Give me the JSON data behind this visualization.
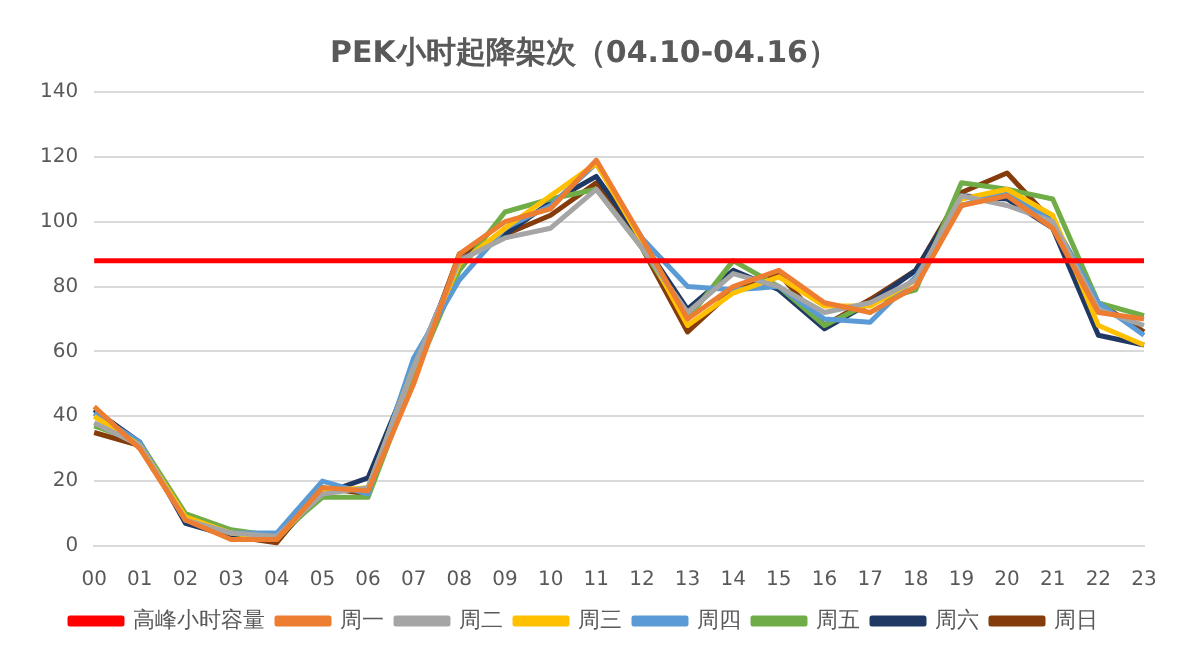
{
  "chart_data": {
    "type": "line",
    "title": "PEK小时起降架次（04.10-04.16）",
    "categories": [
      "00",
      "01",
      "02",
      "03",
      "04",
      "05",
      "06",
      "07",
      "08",
      "09",
      "10",
      "11",
      "12",
      "13",
      "14",
      "15",
      "16",
      "17",
      "18",
      "19",
      "20",
      "21",
      "22",
      "23"
    ],
    "series": [
      {
        "name": "高峰小时容量",
        "color": "#ff0000",
        "values": [
          88,
          88,
          88,
          88,
          88,
          88,
          88,
          88,
          88,
          88,
          88,
          88,
          88,
          88,
          88,
          88,
          88,
          88,
          88,
          88,
          88,
          88,
          88,
          88
        ]
      },
      {
        "name": "周一",
        "color": "#ed7d31",
        "values": [
          43,
          30,
          8,
          2,
          2,
          18,
          17,
          50,
          90,
          100,
          104,
          119,
          95,
          70,
          80,
          85,
          75,
          72,
          80,
          105,
          108,
          98,
          72,
          70
        ]
      },
      {
        "name": "周二",
        "color": "#a5a5a5",
        "values": [
          38,
          31,
          8,
          4,
          3,
          16,
          18,
          55,
          88,
          95,
          98,
          110,
          92,
          72,
          84,
          80,
          72,
          75,
          82,
          108,
          105,
          100,
          73,
          68
        ]
      },
      {
        "name": "周三",
        "color": "#ffc000",
        "values": [
          40,
          31,
          9,
          4,
          2,
          17,
          18,
          55,
          87,
          98,
          108,
          118,
          94,
          68,
          78,
          83,
          74,
          74,
          82,
          107,
          110,
          102,
          68,
          62
        ]
      },
      {
        "name": "周四",
        "color": "#5b9bd5",
        "values": [
          41,
          32,
          8,
          4,
          4,
          20,
          16,
          58,
          82,
          98,
          105,
          118,
          95,
          80,
          79,
          80,
          70,
          69,
          83,
          105,
          109,
          100,
          75,
          65
        ]
      },
      {
        "name": "周五",
        "color": "#70ad47",
        "values": [
          37,
          32,
          10,
          5,
          3,
          15,
          15,
          52,
          85,
          103,
          107,
          110,
          92,
          70,
          88,
          80,
          68,
          75,
          79,
          112,
          110,
          107,
          75,
          71
        ]
      },
      {
        "name": "周六",
        "color": "#203864",
        "values": [
          42,
          32,
          7,
          3,
          2,
          16,
          21,
          55,
          88,
          96,
          106,
          114,
          94,
          73,
          85,
          79,
          67,
          75,
          85,
          108,
          107,
          98,
          65,
          62
        ]
      },
      {
        "name": "周日",
        "color": "#843c0c",
        "values": [
          35,
          31,
          8,
          3,
          1,
          18,
          16,
          52,
          90,
          96,
          102,
          112,
          92,
          66,
          79,
          84,
          68,
          76,
          85,
          109,
          115,
          100,
          75,
          66
        ]
      }
    ],
    "ylim": [
      0,
      140
    ],
    "yticks": [
      0,
      20,
      40,
      60,
      80,
      100,
      120,
      140
    ],
    "grid": "y",
    "legend": "bottom",
    "marker": "none",
    "line_style": "solid"
  }
}
